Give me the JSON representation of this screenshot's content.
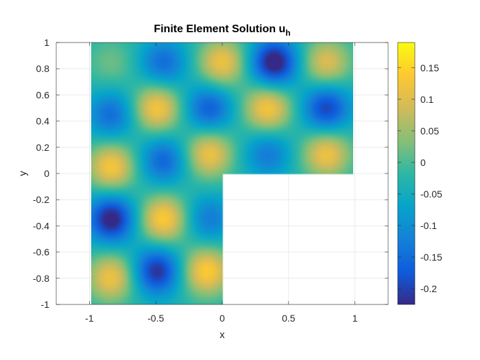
{
  "chart_data": {
    "type": "heatmap",
    "title": "Finite Element Solution u",
    "title_subscript": "h",
    "xlabel": "x",
    "ylabel": "y",
    "xlim": [
      -1.25,
      1.25
    ],
    "ylim": [
      -1,
      1
    ],
    "x_ticks": [
      -1,
      -0.5,
      0,
      0.5,
      1
    ],
    "x_tick_labels": [
      "-1",
      "-0.5",
      "0",
      "0.5",
      "1"
    ],
    "y_ticks": [
      -1,
      -0.8,
      -0.6,
      -0.4,
      -0.2,
      0,
      0.2,
      0.4,
      0.6,
      0.8,
      1
    ],
    "y_tick_labels": [
      "-1",
      "-0.8",
      "-0.6",
      "-0.4",
      "-0.2",
      "0",
      "0.2",
      "0.4",
      "0.6",
      "0.8",
      "1"
    ],
    "grid": true,
    "colormap": "parula",
    "colorbar": {
      "limits": [
        -0.225,
        0.19
      ],
      "ticks": [
        0.15,
        0.1,
        0.05,
        0,
        -0.05,
        -0.1,
        -0.15,
        -0.2
      ],
      "tick_labels": [
        "0.15",
        "0.1",
        "0.05",
        "0",
        "-0.05",
        "-0.1",
        "-0.15",
        "-0.2"
      ],
      "position": "right"
    },
    "domain": "L-shaped region: [-1,1]x[-1,1] minus (0,1]x(-1,0)",
    "extrema": [
      {
        "x": -0.85,
        "y": 0.85,
        "value": 0.05
      },
      {
        "x": -0.45,
        "y": 0.85,
        "value": -0.12
      },
      {
        "x": 0.0,
        "y": 0.85,
        "value": 0.15
      },
      {
        "x": 0.4,
        "y": 0.85,
        "value": -0.22
      },
      {
        "x": 0.8,
        "y": 0.85,
        "value": 0.13
      },
      {
        "x": -0.85,
        "y": 0.45,
        "value": -0.12
      },
      {
        "x": -0.5,
        "y": 0.5,
        "value": 0.16
      },
      {
        "x": -0.1,
        "y": 0.5,
        "value": -0.14
      },
      {
        "x": 0.35,
        "y": 0.5,
        "value": 0.16
      },
      {
        "x": 0.8,
        "y": 0.5,
        "value": -0.17
      },
      {
        "x": -0.85,
        "y": 0.05,
        "value": 0.16
      },
      {
        "x": -0.45,
        "y": 0.1,
        "value": -0.13
      },
      {
        "x": -0.1,
        "y": 0.15,
        "value": 0.15
      },
      {
        "x": 0.35,
        "y": 0.15,
        "value": -0.1
      },
      {
        "x": 0.8,
        "y": 0.15,
        "value": 0.15
      },
      {
        "x": -0.85,
        "y": -0.35,
        "value": -0.21
      },
      {
        "x": -0.45,
        "y": -0.35,
        "value": 0.17
      },
      {
        "x": -0.1,
        "y": -0.35,
        "value": -0.1
      },
      {
        "x": -0.85,
        "y": -0.8,
        "value": 0.15
      },
      {
        "x": -0.5,
        "y": -0.75,
        "value": -0.19
      },
      {
        "x": -0.12,
        "y": -0.75,
        "value": 0.17
      }
    ]
  },
  "colors": {
    "parula": [
      "#352a87",
      "#0f5cdd",
      "#1481d6",
      "#06a4ca",
      "#2eb7a4",
      "#87bf77",
      "#d1bb59",
      "#fec832",
      "#f9fb0e"
    ]
  }
}
